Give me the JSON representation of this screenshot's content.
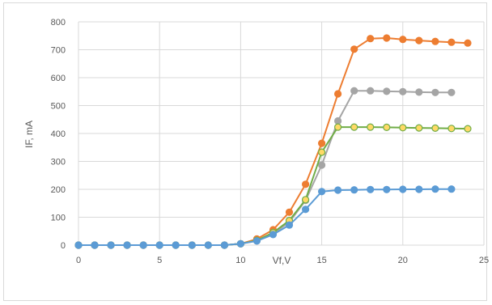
{
  "chart_data": {
    "type": "line",
    "title": "",
    "xlabel": "Vf,V",
    "ylabel": "IF, mA",
    "xlim": [
      0,
      25
    ],
    "ylim": [
      0,
      800
    ],
    "xticks": [
      "0",
      "5",
      "10",
      "15",
      "20",
      "25"
    ],
    "yticks": [
      "0",
      "100",
      "200",
      "300",
      "400",
      "500",
      "600",
      "700",
      "800"
    ],
    "grid": "vertical and horizontal",
    "legend": "none",
    "series": [
      {
        "color": "#ED7D31",
        "marker_fill": "#ED7D31",
        "x": [
          0,
          1,
          2,
          3,
          4,
          5,
          6,
          7,
          8,
          9,
          10,
          11,
          12,
          13,
          14,
          15,
          16,
          17,
          18,
          19,
          20,
          21,
          22,
          23,
          24
        ],
        "y": [
          0,
          0,
          0,
          0,
          0,
          0,
          0,
          0,
          0,
          0,
          5,
          22,
          55,
          118,
          218,
          365,
          542,
          702,
          740,
          742,
          737,
          733,
          730,
          727,
          724
        ]
      },
      {
        "color": "#A5A5A5",
        "marker_fill": "#A5A5A5",
        "x": [
          0,
          1,
          2,
          3,
          4,
          5,
          6,
          7,
          8,
          9,
          10,
          11,
          12,
          13,
          14,
          15,
          16,
          17,
          18,
          19,
          20,
          21,
          22,
          23
        ],
        "y": [
          0,
          0,
          0,
          0,
          0,
          0,
          0,
          0,
          0,
          0,
          5,
          15,
          42,
          82,
          160,
          287,
          445,
          553,
          553,
          551,
          550,
          548,
          547,
          547
        ]
      },
      {
        "color": "#70AD47",
        "marker_fill": "#FFD966",
        "x": [
          0,
          1,
          2,
          3,
          4,
          5,
          6,
          7,
          8,
          9,
          10,
          11,
          12,
          13,
          14,
          15,
          16,
          17,
          18,
          19,
          20,
          21,
          22,
          23,
          24
        ],
        "y": [
          0,
          0,
          0,
          0,
          0,
          0,
          0,
          0,
          0,
          0,
          5,
          17,
          45,
          88,
          163,
          333,
          423,
          423,
          423,
          422,
          421,
          420,
          419,
          418,
          417
        ]
      },
      {
        "color": "#5B9BD5",
        "marker_fill": "#5B9BD5",
        "x": [
          0,
          1,
          2,
          3,
          4,
          5,
          6,
          7,
          8,
          9,
          10,
          11,
          12,
          13,
          14,
          15,
          16,
          17,
          18,
          19,
          20,
          21,
          22,
          23
        ],
        "y": [
          0,
          0,
          0,
          0,
          0,
          0,
          0,
          0,
          0,
          0,
          5,
          15,
          38,
          72,
          128,
          192,
          197,
          198,
          199,
          199,
          200,
          200,
          201,
          201
        ]
      }
    ]
  }
}
